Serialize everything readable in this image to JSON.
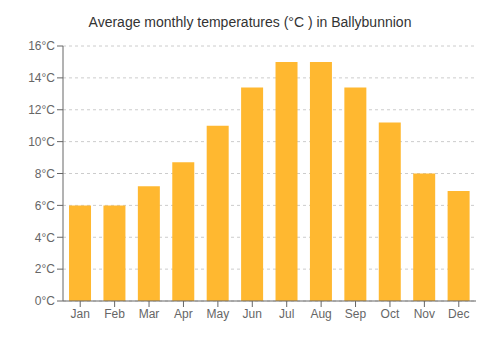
{
  "chart_data": {
    "type": "bar",
    "title": "Average monthly temperatures (°C ) in Ballybunnion",
    "categories": [
      "Jan",
      "Feb",
      "Mar",
      "Apr",
      "May",
      "Jun",
      "Jul",
      "Aug",
      "Sep",
      "Oct",
      "Nov",
      "Dec"
    ],
    "values": [
      6.0,
      6.0,
      7.2,
      8.7,
      11.0,
      13.4,
      15.0,
      15.0,
      13.4,
      11.2,
      8.0,
      6.9
    ],
    "color": "#FFB830",
    "ylim": [
      0,
      16
    ],
    "yticks": [
      {
        "value": 0,
        "label": "0°C"
      },
      {
        "value": 2,
        "label": "2°C"
      },
      {
        "value": 4,
        "label": "4°C"
      },
      {
        "value": 6,
        "label": "6°C"
      },
      {
        "value": 8,
        "label": "8°C"
      },
      {
        "value": 10,
        "label": "10°C"
      },
      {
        "value": 12,
        "label": "12°C"
      },
      {
        "value": 14,
        "label": "14°C"
      },
      {
        "value": 16,
        "label": "16°C"
      }
    ],
    "grid": true
  }
}
